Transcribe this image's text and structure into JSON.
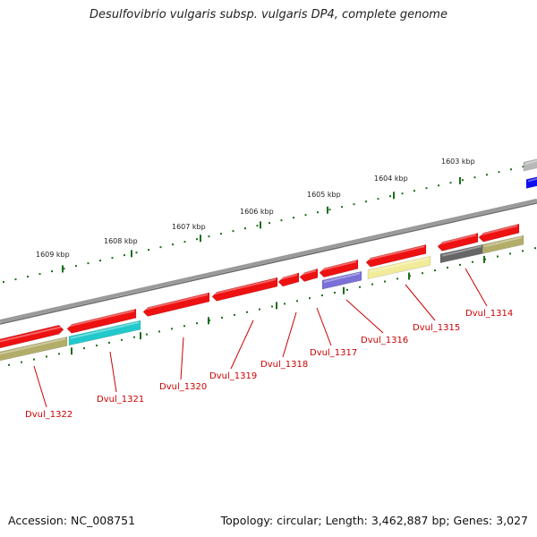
{
  "title": "Desulfovibrio vulgaris subsp. vulgaris DP4, complete genome",
  "footer": {
    "accession": "Accession: NC_008751",
    "summary": "Topology: circular; Length: 3,462,887 bp; Genes: 3,027"
  },
  "colors": {
    "backbone": "#8c8c8c",
    "ticks": "#1a6e1a",
    "label": "#cc0000",
    "gene_red": "#ee1111",
    "gene_olive": "#b3ad6a",
    "gene_cyan": "#22c9cc",
    "gene_purple": "#7a70d8",
    "gene_yellow": "#f2ec9a",
    "gene_gray": "#666666",
    "gene_lightgray": "#b8b8b8",
    "gene_blue": "#1010ee"
  },
  "scale_labels": [
    "1609 kbp",
    "1608 kbp",
    "1607 kbp",
    "1606 kbp",
    "1605 kbp",
    "1604 kbp",
    "1603 kbp"
  ],
  "gene_labels": [
    "Dvul_1322",
    "Dvul_1321",
    "Dvul_1320",
    "Dvul_1319",
    "Dvul_1318",
    "Dvul_1317",
    "Dvul_1316",
    "Dvul_1315",
    "Dvul_1314"
  ]
}
